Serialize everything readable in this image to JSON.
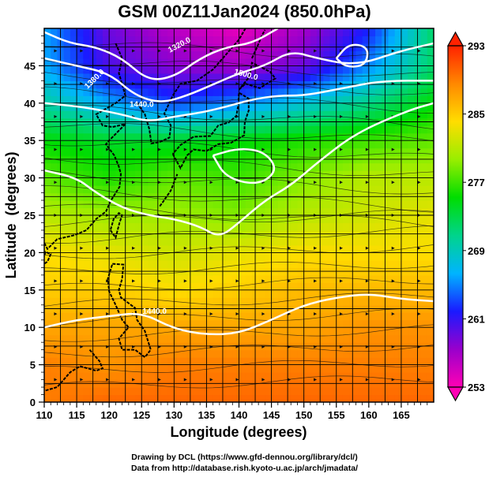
{
  "title": "GSM 00Z11Jan2024 (850.0hPa)",
  "credits": {
    "line1": "Drawing by DCL (https://www.gfd-dennou.org/library/dcl/)",
    "line2": "Data from http://database.rish.kyoto-u.ac.jp/arch/jmadata/"
  },
  "chart_data": {
    "type": "heatmap",
    "title": "GSM 00Z11Jan2024 (850.0hPa)",
    "xlabel": "Longitude (degrees)",
    "ylabel": "Latitude  (degrees)",
    "xlim": [
      110,
      170
    ],
    "ylim": [
      0,
      50
    ],
    "x_ticks": [
      110,
      115,
      120,
      125,
      130,
      135,
      140,
      145,
      150,
      155,
      160,
      165
    ],
    "y_ticks": [
      0,
      5,
      10,
      15,
      20,
      25,
      30,
      35,
      40,
      45
    ],
    "grid": true,
    "colorbar": {
      "placement": "right",
      "range": [
        253,
        293
      ],
      "tick_labels": [
        "293",
        "285",
        "277",
        "269",
        "261",
        "253"
      ],
      "colors": [
        "#ff00b4",
        "#9900cc",
        "#1a1aff",
        "#00b4ff",
        "#00d48c",
        "#00dd00",
        "#99ee00",
        "#ffdd00",
        "#ff8800",
        "#ff2200"
      ]
    },
    "temperature_grid": {
      "lons": [
        110,
        120,
        130,
        140,
        150,
        160,
        170
      ],
      "lats": [
        50,
        45,
        40,
        35,
        30,
        25,
        20,
        15,
        10,
        5,
        0
      ],
      "values_K": [
        [
          266,
          259,
          256,
          254,
          257,
          262,
          272
        ],
        [
          266,
          260,
          258,
          257,
          259,
          265,
          272
        ],
        [
          270,
          266,
          263,
          265,
          268,
          271,
          275
        ],
        [
          275,
          274,
          274,
          275,
          276,
          277,
          278
        ],
        [
          278,
          276,
          278,
          277,
          279,
          281,
          281
        ],
        [
          281,
          280,
          280,
          279,
          281,
          282,
          283
        ],
        [
          284,
          283,
          282,
          283,
          284,
          284,
          284
        ],
        [
          285,
          285,
          284,
          285,
          286,
          286,
          286
        ],
        [
          287,
          287,
          287,
          287,
          287,
          288,
          288
        ],
        [
          289,
          288,
          289,
          289,
          289,
          289,
          289
        ],
        [
          289,
          290,
          290,
          290,
          290,
          290,
          290
        ]
      ]
    },
    "contour_labels": [
      "1320.0",
      "1380.0",
      "1440.0",
      "1500.0",
      "1440.0"
    ],
    "contours": [
      [
        [
          110,
          49.5
        ],
        [
          114,
          48
        ],
        [
          118,
          47.5
        ],
        [
          122,
          46
        ],
        [
          126,
          43
        ],
        [
          130,
          43.5
        ],
        [
          134,
          46
        ],
        [
          138,
          47.5
        ],
        [
          142,
          48
        ],
        [
          146,
          50
        ]
      ],
      [
        [
          110,
          46
        ],
        [
          115,
          45
        ],
        [
          120,
          44
        ],
        [
          124,
          41
        ],
        [
          128,
          40
        ],
        [
          132,
          41
        ],
        [
          136,
          42.5
        ],
        [
          140,
          44
        ],
        [
          144,
          45
        ],
        [
          148,
          47
        ],
        [
          152,
          46
        ],
        [
          158,
          45
        ],
        [
          165,
          47
        ],
        [
          170,
          48
        ]
      ],
      [
        [
          110,
          40
        ],
        [
          116,
          39.5
        ],
        [
          122,
          38.5
        ],
        [
          126,
          37.5
        ],
        [
          130,
          38.2
        ],
        [
          134,
          38.7
        ],
        [
          138,
          39.5
        ],
        [
          142,
          40.5
        ],
        [
          146,
          41
        ],
        [
          150,
          41
        ],
        [
          156,
          42
        ],
        [
          162,
          43
        ],
        [
          170,
          43
        ]
      ],
      [
        [
          110,
          31
        ],
        [
          115,
          30
        ],
        [
          118,
          28
        ],
        [
          122,
          26
        ],
        [
          126,
          25
        ],
        [
          130,
          24.5
        ],
        [
          134,
          23.5
        ],
        [
          137,
          22
        ],
        [
          140,
          24
        ],
        [
          144,
          27
        ],
        [
          148,
          29
        ],
        [
          152,
          32
        ],
        [
          158,
          36
        ],
        [
          166,
          39
        ],
        [
          170,
          40
        ]
      ],
      [
        [
          110,
          10
        ],
        [
          115,
          11
        ],
        [
          120,
          11.5
        ],
        [
          125,
          12
        ],
        [
          130,
          9.8
        ],
        [
          135,
          9
        ],
        [
          140,
          9.2
        ],
        [
          145,
          11
        ],
        [
          150,
          13
        ],
        [
          155,
          14
        ],
        [
          160,
          14.5
        ],
        [
          165,
          13.8
        ],
        [
          170,
          13.5
        ]
      ],
      [
        [
          136,
          33
        ],
        [
          140,
          34
        ],
        [
          144,
          33.5
        ],
        [
          146,
          31
        ],
        [
          143,
          29
        ],
        [
          138,
          30
        ],
        [
          136,
          33
        ]
      ],
      [
        [
          155,
          46
        ],
        [
          157,
          48
        ],
        [
          160,
          47.5
        ],
        [
          159.5,
          45
        ],
        [
          156.5,
          44.8
        ],
        [
          155,
          46
        ]
      ]
    ]
  }
}
